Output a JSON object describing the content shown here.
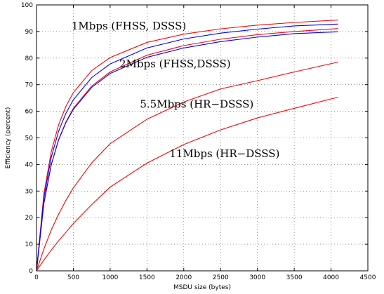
{
  "chart_data": {
    "type": "line",
    "title": "",
    "xlabel": "MSDU size (bytes)",
    "ylabel": "Efficiency (percent)",
    "xlim": [
      0,
      4500
    ],
    "ylim": [
      0,
      100
    ],
    "xticks": [
      0,
      500,
      1000,
      1500,
      2000,
      2500,
      3000,
      3500,
      4000,
      4500
    ],
    "yticks": [
      0,
      10,
      20,
      30,
      40,
      50,
      60,
      70,
      80,
      90,
      100
    ],
    "grid": true,
    "x": [
      0,
      100,
      200,
      300,
      400,
      500,
      750,
      1000,
      1500,
      2000,
      2500,
      3000,
      3500,
      4095
    ],
    "series": [
      {
        "color": "#ff0000",
        "values": [
          0,
          28.9,
          44.8,
          54.9,
          61.9,
          67.0,
          75.3,
          80.2,
          85.9,
          89.0,
          91.0,
          92.4,
          93.4,
          94.3
        ]
      },
      {
        "color": "#0000ff",
        "values": [
          0,
          27.4,
          42.7,
          52.5,
          59.3,
          64.3,
          72.7,
          77.8,
          83.8,
          87.2,
          89.4,
          90.9,
          92.1,
          92.8
        ]
      },
      {
        "color": "#ff0000",
        "values": [
          0,
          25.3,
          39.8,
          49.4,
          56.0,
          61.1,
          69.5,
          74.8,
          81.1,
          84.7,
          87.1,
          88.8,
          90.0,
          91.1
        ]
      },
      {
        "color": "#0000ff",
        "values": [
          0,
          25.5,
          39.9,
          49.2,
          55.8,
          60.7,
          69.0,
          74.2,
          80.3,
          83.8,
          86.2,
          87.9,
          89.2,
          89.9
        ]
      },
      {
        "color": "#ff0000",
        "values": [
          0,
          8.2,
          15.3,
          21.3,
          26.5,
          31.2,
          40.6,
          47.8,
          57.0,
          63.5,
          68.4,
          71.5,
          74.8,
          78.5
        ]
      },
      {
        "color": "#ff0000",
        "values": [
          0,
          4.0,
          7.8,
          11.3,
          14.5,
          17.8,
          24.9,
          31.5,
          40.5,
          47.5,
          53.0,
          57.5,
          61.1,
          65.3
        ]
      }
    ],
    "annotations": [
      {
        "text": "1Mbps (FHSS, DSSS)",
        "x": 475,
        "y": 90.8
      },
      {
        "text": "2Mbps (FHSS,DSSS)",
        "x": 1125,
        "y": 76.5
      },
      {
        "text": "5.5Mbps (HR−DSSS)",
        "x": 1405,
        "y": 61.3
      },
      {
        "text": "11Mbps (HR−DSSS)",
        "x": 1805,
        "y": 42.8
      }
    ]
  }
}
